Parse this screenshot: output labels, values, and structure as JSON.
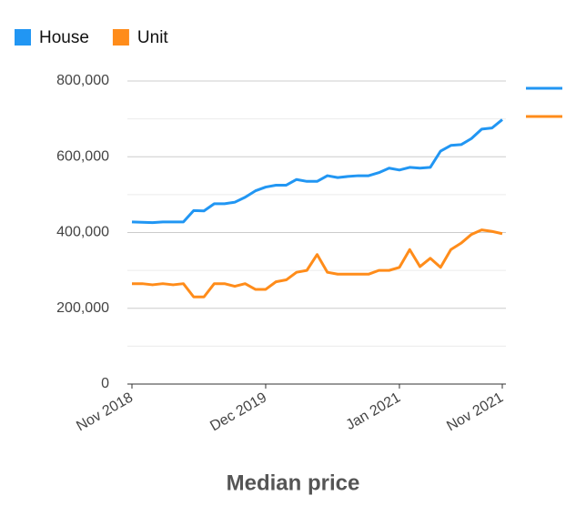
{
  "chart_data": {
    "type": "line",
    "title": "Median price",
    "categories": [
      "Nov 2018",
      null,
      null,
      null,
      null,
      null,
      null,
      null,
      null,
      null,
      null,
      null,
      null,
      "Dec 2019",
      null,
      null,
      null,
      null,
      null,
      null,
      null,
      null,
      null,
      null,
      null,
      null,
      "Jan 2021",
      null,
      null,
      null,
      null,
      null,
      null,
      null,
      null,
      null,
      "Nov 2021"
    ],
    "series": [
      {
        "name": "House",
        "color": "#2196f3",
        "values": [
          428000,
          427000,
          426000,
          428000,
          428000,
          428000,
          458000,
          457000,
          476000,
          476000,
          480000,
          493000,
          510000,
          520000,
          525000,
          525000,
          540000,
          535000,
          535000,
          550000,
          545000,
          548000,
          550000,
          550000,
          558000,
          570000,
          565000,
          572000,
          570000,
          572000,
          615000,
          630000,
          632000,
          648000,
          673000,
          676000,
          698000
        ]
      },
      {
        "name": "Unit",
        "color": "#ff8c1a",
        "values": [
          265000,
          265000,
          262000,
          265000,
          262000,
          265000,
          230000,
          230000,
          265000,
          265000,
          258000,
          265000,
          250000,
          250000,
          270000,
          275000,
          295000,
          300000,
          342000,
          295000,
          290000,
          290000,
          290000,
          290000,
          300000,
          300000,
          308000,
          355000,
          310000,
          332000,
          308000,
          355000,
          372000,
          395000,
          407000,
          403000,
          397000
        ]
      }
    ],
    "ylim": [
      0,
      800000
    ],
    "yticks": [
      {
        "value": 0,
        "label": "0"
      },
      {
        "value": 200000,
        "label": "200,000"
      },
      {
        "value": 400000,
        "label": "400,000"
      },
      {
        "value": 600000,
        "label": "600,000"
      },
      {
        "value": 800000,
        "label": "800,000"
      }
    ],
    "minor_yticks": [
      100000,
      300000,
      500000,
      700000
    ],
    "grid": true,
    "legend": "top-left"
  }
}
